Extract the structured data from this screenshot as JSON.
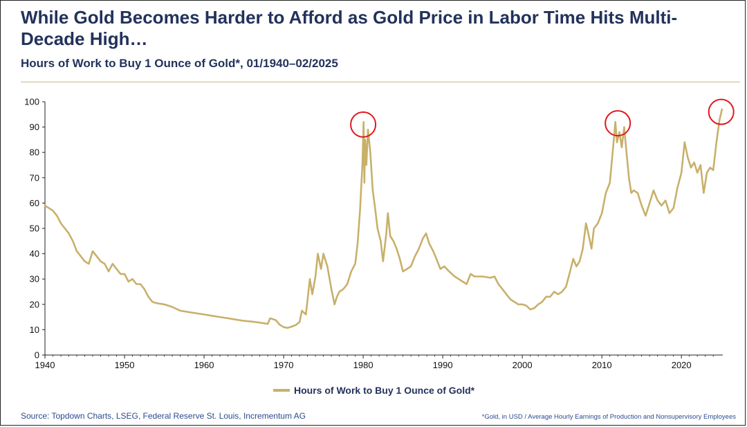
{
  "header": {
    "title": "While Gold Becomes Harder to Afford as Gold Price in Labor Time Hits Multi-Decade High…",
    "subtitle": "Hours of Work to Buy 1 Ounce of Gold*, 01/1940–02/2025"
  },
  "footer": {
    "source": "Source: Topdown Charts, LSEG, Federal Reserve St. Louis, Incrementum AG",
    "note": "*Gold, in USD / Average Hourly Earnings of Production and Nonsupervisory Employees"
  },
  "colors": {
    "line": "#c8b06a",
    "highlight": "#e0181f",
    "text": "#22325b"
  },
  "chart_data": {
    "type": "line",
    "xlim": [
      1940,
      2025.2
    ],
    "ylim": [
      0,
      100
    ],
    "x_ticks": [
      1940,
      1950,
      1960,
      1970,
      1980,
      1990,
      2000,
      2010,
      2020
    ],
    "x_tick_labels": [
      "1940",
      "1950",
      "1960",
      "1970",
      "1980",
      "1990",
      "2000",
      "2010",
      "2020"
    ],
    "y_ticks": [
      0,
      10,
      20,
      30,
      40,
      50,
      60,
      70,
      80,
      90,
      100
    ],
    "y_tick_labels": [
      "0",
      "10",
      "20",
      "30",
      "40",
      "50",
      "60",
      "70",
      "80",
      "90",
      "100"
    ],
    "grid": false,
    "legend_position": "bottom",
    "series": [
      {
        "name": "Hours of Work to Buy 1 Ounce of Gold*",
        "points": [
          [
            1940.0,
            59
          ],
          [
            1940.5,
            58
          ],
          [
            1941.0,
            57
          ],
          [
            1941.5,
            55
          ],
          [
            1942.0,
            52
          ],
          [
            1942.5,
            50
          ],
          [
            1943.0,
            48
          ],
          [
            1943.5,
            45
          ],
          [
            1944.0,
            41
          ],
          [
            1944.5,
            39
          ],
          [
            1945.0,
            37
          ],
          [
            1945.5,
            36
          ],
          [
            1946.0,
            41
          ],
          [
            1946.5,
            39
          ],
          [
            1947.0,
            37
          ],
          [
            1947.5,
            36
          ],
          [
            1948.0,
            33
          ],
          [
            1948.5,
            36
          ],
          [
            1949.0,
            34
          ],
          [
            1949.5,
            32
          ],
          [
            1950.0,
            32
          ],
          [
            1950.5,
            29
          ],
          [
            1951.0,
            30
          ],
          [
            1951.5,
            28
          ],
          [
            1952.0,
            28
          ],
          [
            1952.5,
            26
          ],
          [
            1953.0,
            23
          ],
          [
            1953.5,
            21
          ],
          [
            1954.0,
            20.5
          ],
          [
            1955.0,
            20
          ],
          [
            1956.0,
            19
          ],
          [
            1957.0,
            17.5
          ],
          [
            1958.0,
            17
          ],
          [
            1959.0,
            16.5
          ],
          [
            1960.0,
            16
          ],
          [
            1961.0,
            15.5
          ],
          [
            1962.0,
            15
          ],
          [
            1963.0,
            14.5
          ],
          [
            1964.0,
            14
          ],
          [
            1965.0,
            13.5
          ],
          [
            1966.0,
            13.2
          ],
          [
            1967.0,
            12.8
          ],
          [
            1968.0,
            12.3
          ],
          [
            1968.3,
            14.5
          ],
          [
            1969.0,
            13.8
          ],
          [
            1969.5,
            12
          ],
          [
            1970.0,
            11
          ],
          [
            1970.5,
            10.7
          ],
          [
            1971.0,
            11.2
          ],
          [
            1971.5,
            11.8
          ],
          [
            1972.0,
            13
          ],
          [
            1972.3,
            17.5
          ],
          [
            1972.8,
            16
          ],
          [
            1973.3,
            30
          ],
          [
            1973.6,
            24
          ],
          [
            1974.0,
            31
          ],
          [
            1974.3,
            40
          ],
          [
            1974.7,
            34
          ],
          [
            1975.0,
            40
          ],
          [
            1975.5,
            35
          ],
          [
            1976.0,
            26
          ],
          [
            1976.4,
            20
          ],
          [
            1976.7,
            23
          ],
          [
            1977.0,
            25
          ],
          [
            1977.5,
            26
          ],
          [
            1978.0,
            28
          ],
          [
            1978.5,
            33
          ],
          [
            1979.0,
            36
          ],
          [
            1979.3,
            44
          ],
          [
            1979.6,
            57
          ],
          [
            1979.9,
            75
          ],
          [
            1980.05,
            92
          ],
          [
            1980.15,
            68
          ],
          [
            1980.25,
            85
          ],
          [
            1980.4,
            75
          ],
          [
            1980.6,
            89
          ],
          [
            1980.9,
            80
          ],
          [
            1981.2,
            65
          ],
          [
            1981.5,
            58
          ],
          [
            1981.8,
            50
          ],
          [
            1982.2,
            45
          ],
          [
            1982.5,
            37
          ],
          [
            1982.9,
            48
          ],
          [
            1983.1,
            56
          ],
          [
            1983.4,
            47
          ],
          [
            1983.8,
            45
          ],
          [
            1984.2,
            42
          ],
          [
            1984.6,
            38
          ],
          [
            1985.0,
            33
          ],
          [
            1985.5,
            34
          ],
          [
            1986.0,
            35
          ],
          [
            1986.5,
            39
          ],
          [
            1987.0,
            42
          ],
          [
            1987.5,
            46
          ],
          [
            1987.9,
            48
          ],
          [
            1988.3,
            44
          ],
          [
            1988.8,
            41
          ],
          [
            1989.2,
            38
          ],
          [
            1989.7,
            34
          ],
          [
            1990.2,
            35
          ],
          [
            1990.8,
            33
          ],
          [
            1991.5,
            31
          ],
          [
            1992.0,
            30
          ],
          [
            1992.5,
            29
          ],
          [
            1993.0,
            28
          ],
          [
            1993.5,
            32
          ],
          [
            1994.0,
            31
          ],
          [
            1995.0,
            31
          ],
          [
            1996.0,
            30.5
          ],
          [
            1996.5,
            31
          ],
          [
            1997.0,
            28
          ],
          [
            1997.5,
            26
          ],
          [
            1998.0,
            24
          ],
          [
            1998.5,
            22
          ],
          [
            1999.0,
            21
          ],
          [
            1999.5,
            20
          ],
          [
            2000.0,
            20
          ],
          [
            2000.5,
            19.5
          ],
          [
            2001.0,
            18
          ],
          [
            2001.5,
            18.5
          ],
          [
            2002.0,
            20
          ],
          [
            2002.5,
            21
          ],
          [
            2003.0,
            23
          ],
          [
            2003.5,
            23
          ],
          [
            2004.0,
            25
          ],
          [
            2004.5,
            24
          ],
          [
            2005.0,
            25
          ],
          [
            2005.5,
            27
          ],
          [
            2006.0,
            33
          ],
          [
            2006.4,
            38
          ],
          [
            2006.8,
            35
          ],
          [
            2007.2,
            37
          ],
          [
            2007.6,
            42
          ],
          [
            2008.0,
            52
          ],
          [
            2008.3,
            48
          ],
          [
            2008.7,
            42
          ],
          [
            2009.0,
            50
          ],
          [
            2009.5,
            52
          ],
          [
            2010.0,
            56
          ],
          [
            2010.5,
            64
          ],
          [
            2011.0,
            68
          ],
          [
            2011.3,
            78
          ],
          [
            2011.7,
            92
          ],
          [
            2011.9,
            84
          ],
          [
            2012.2,
            88
          ],
          [
            2012.5,
            82
          ],
          [
            2012.8,
            90
          ],
          [
            2013.1,
            80
          ],
          [
            2013.4,
            70
          ],
          [
            2013.7,
            64
          ],
          [
            2014.0,
            65
          ],
          [
            2014.5,
            64
          ],
          [
            2015.0,
            59
          ],
          [
            2015.5,
            55
          ],
          [
            2016.0,
            60
          ],
          [
            2016.5,
            65
          ],
          [
            2017.0,
            61
          ],
          [
            2017.5,
            59
          ],
          [
            2018.0,
            61
          ],
          [
            2018.5,
            56
          ],
          [
            2019.0,
            58
          ],
          [
            2019.5,
            66
          ],
          [
            2020.0,
            72
          ],
          [
            2020.4,
            84
          ],
          [
            2020.8,
            78
          ],
          [
            2021.2,
            74
          ],
          [
            2021.6,
            76
          ],
          [
            2022.0,
            72
          ],
          [
            2022.4,
            75
          ],
          [
            2022.8,
            64
          ],
          [
            2023.2,
            72
          ],
          [
            2023.6,
            74
          ],
          [
            2024.0,
            73
          ],
          [
            2024.4,
            84
          ],
          [
            2024.8,
            93
          ],
          [
            2024.95,
            95
          ],
          [
            2025.1,
            97
          ]
        ]
      }
    ],
    "highlights": [
      {
        "x": 1980.0,
        "y": 91
      },
      {
        "x": 2012.0,
        "y": 91.5
      },
      {
        "x": 2025.0,
        "y": 96
      }
    ]
  }
}
